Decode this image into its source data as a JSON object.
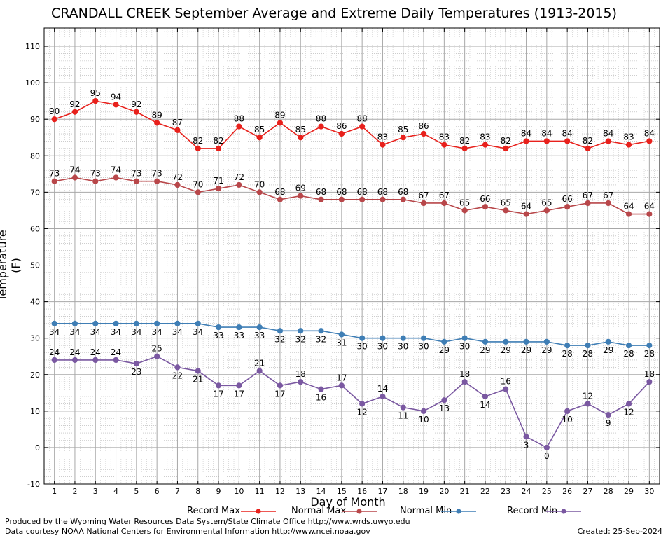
{
  "title": "CRANDALL CREEK September Average and Extreme Daily Temperatures (1913-2015)",
  "footer": {
    "left1": "Produced by the Wyoming Water Resources Data System/State Climate Office http://www.wrds.uwyo.edu",
    "left2": "Data courtesy NOAA National Centers for Environmental Information http://www.ncei.noaa.gov",
    "right": "Created:  25-Sep-2024"
  },
  "chart_data": {
    "type": "line",
    "title": "CRANDALL CREEK September Average and Extreme Daily Temperatures (1913-2015)",
    "xlabel": "Day of Month",
    "ylabel": "Temperature (F)",
    "ylim": [
      -10,
      115
    ],
    "yticks": [
      -10,
      0,
      10,
      20,
      30,
      40,
      50,
      60,
      70,
      80,
      90,
      100,
      110
    ],
    "x": [
      1,
      2,
      3,
      4,
      5,
      6,
      7,
      8,
      9,
      10,
      11,
      12,
      13,
      14,
      15,
      16,
      17,
      18,
      19,
      20,
      21,
      22,
      23,
      24,
      25,
      26,
      27,
      28,
      29,
      30
    ],
    "grid": true,
    "legend": "bottom",
    "series": [
      {
        "name": "Record Max",
        "color": "#e8211c",
        "label_pos": "above",
        "values": [
          90,
          92,
          95,
          94,
          92,
          89,
          87,
          82,
          82,
          88,
          85,
          89,
          85,
          88,
          86,
          88,
          83,
          85,
          86,
          83,
          82,
          83,
          82,
          84,
          84,
          84,
          82,
          84,
          83,
          84
        ]
      },
      {
        "name": "Normal Max",
        "color": "#b8474a",
        "label_pos": "above",
        "values": [
          73,
          74,
          73,
          74,
          73,
          73,
          72,
          70,
          71,
          72,
          70,
          68,
          69,
          68,
          68,
          68,
          68,
          68,
          67,
          67,
          65,
          66,
          65,
          64,
          65,
          66,
          67,
          67,
          64,
          64
        ]
      },
      {
        "name": "Normal Min",
        "color": "#3f7eb5",
        "label_pos": "below",
        "values": [
          34,
          34,
          34,
          34,
          34,
          34,
          34,
          34,
          33,
          33,
          33,
          32,
          32,
          32,
          31,
          30,
          30,
          30,
          30,
          29,
          30,
          29,
          29,
          29,
          29,
          28,
          28,
          29,
          28,
          28
        ]
      },
      {
        "name": "Record Min",
        "color": "#7a58a1",
        "label_pos": "mixed",
        "values": [
          24,
          24,
          24,
          24,
          23,
          25,
          22,
          21,
          17,
          17,
          21,
          17,
          18,
          16,
          17,
          12,
          14,
          11,
          10,
          13,
          18,
          14,
          16,
          3,
          0,
          10,
          12,
          9,
          12,
          18
        ]
      }
    ]
  }
}
